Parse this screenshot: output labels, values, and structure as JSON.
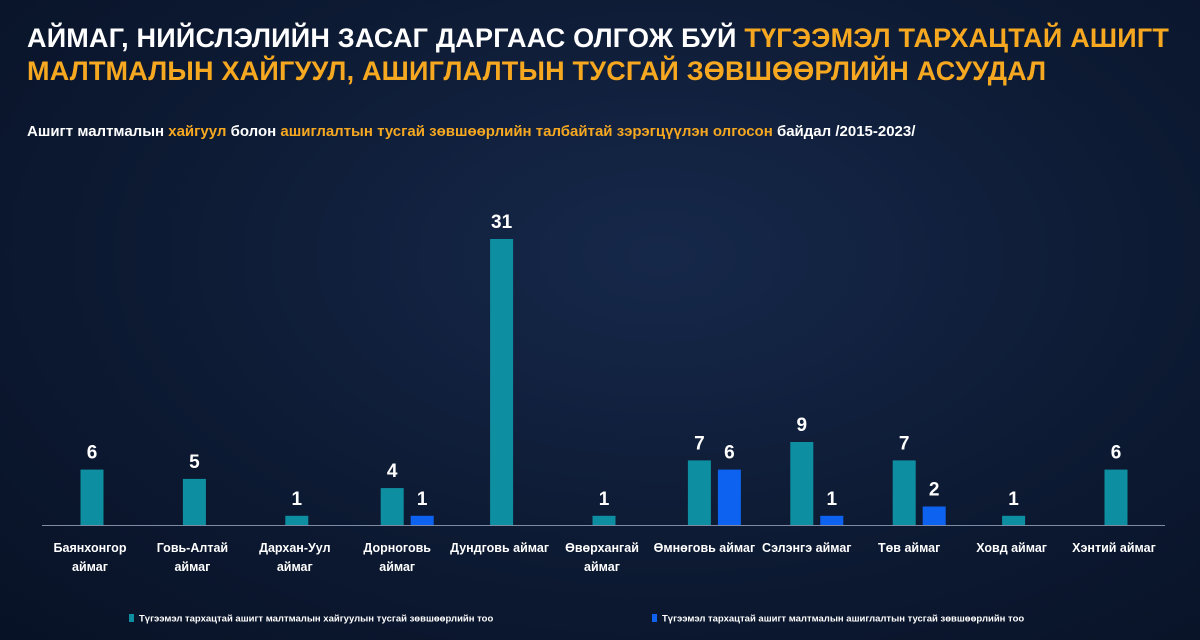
{
  "title": {
    "part1": "АЙМАГ, НИЙСЛЭЛИЙН ЗАСАГ ДАРГААС ОЛГОЖ БУЙ ",
    "part2": "ТҮГЭЭМЭЛ ТАРХАЦТАЙ АШИГТ МАЛТМАЛЫН ХАЙГУУЛ, АШИГЛАЛТЫН ТУСГАЙ ЗӨВШӨӨРЛИЙН АСУУДАЛ"
  },
  "subtitle": {
    "p1": "Ашигт малтмалын ",
    "p2": "хайгуул",
    "p3": " болон ",
    "p4": "ашиглалтын тусгай зөвшөөрлийн талбайтай зэрэгцүүлэн олгосон",
    "p5": " байдал /2015-2023/"
  },
  "colors": {
    "series1": "#0e8fa1",
    "series2": "#0d63f0",
    "highlight": "#f6a821"
  },
  "chart_data": {
    "type": "bar",
    "categories": [
      [
        "Баянхонгор",
        "аймаг"
      ],
      [
        "Говь-Алтай",
        "аймаг"
      ],
      [
        "Дархан-Уул",
        "аймаг"
      ],
      [
        "Дорноговь",
        "аймаг"
      ],
      [
        "Дундговь аймаг"
      ],
      [
        "Өвөрхангай",
        "аймаг"
      ],
      [
        "Өмнөговь аймаг"
      ],
      [
        "Сэлэнгэ аймаг"
      ],
      [
        "Төв аймаг"
      ],
      [
        "Ховд аймаг"
      ],
      [
        "Хэнтий аймаг"
      ]
    ],
    "series": [
      {
        "name": "Түгээмэл тархацтай ашигт малтмалын хайгуулын тусгай зөвшөөрлийн тоо",
        "values": [
          6,
          5,
          1,
          4,
          31,
          1,
          7,
          9,
          7,
          1,
          6
        ]
      },
      {
        "name": "Түгээмэл тархацтай ашигт малтмалын ашиглалтын тусгай зөвшөөрлийн тоо",
        "values": [
          null,
          null,
          null,
          1,
          null,
          null,
          6,
          1,
          2,
          null,
          null
        ]
      }
    ],
    "ylim": [
      0,
      31
    ],
    "grid": false,
    "legend": "bottom"
  }
}
